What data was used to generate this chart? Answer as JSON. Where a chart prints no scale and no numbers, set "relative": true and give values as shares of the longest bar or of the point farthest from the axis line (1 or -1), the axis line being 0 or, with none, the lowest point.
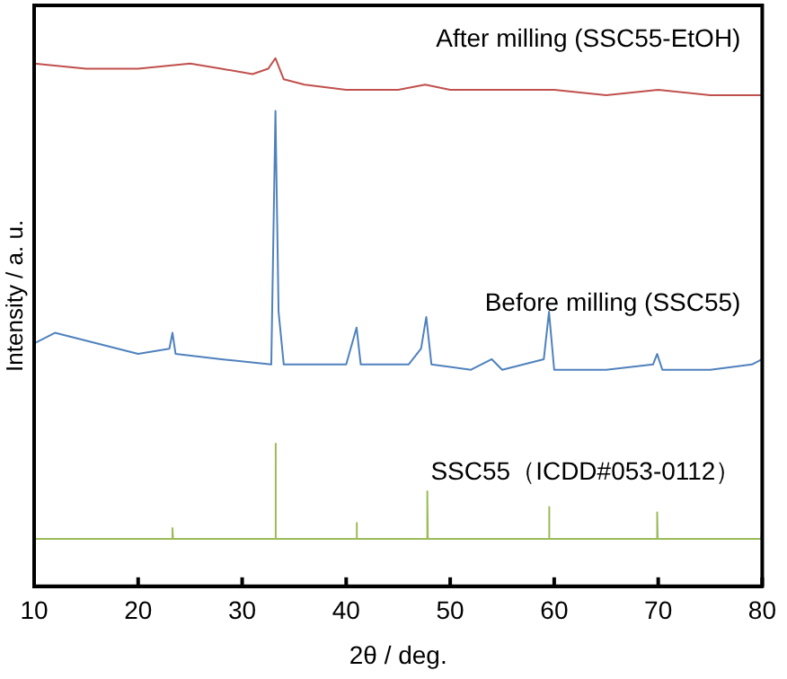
{
  "chart_data": {
    "type": "line",
    "relative": true,
    "xlabel": "2θ / deg.",
    "ylabel": "Intensity / a. u.",
    "xlim": [
      10,
      80
    ],
    "xticks": [
      10,
      20,
      30,
      40,
      50,
      60,
      70,
      80
    ],
    "grid": false,
    "legend": false,
    "marker": "none",
    "line_style": "solid",
    "series": [
      {
        "name": "After milling (SSC55-EtOH)",
        "color": "#c0504d",
        "x": [
          10,
          15,
          20,
          25,
          28,
          31,
          32.5,
          33.2,
          34,
          36,
          40,
          45,
          47.6,
          50,
          55,
          60,
          65,
          70,
          75,
          80
        ],
        "values": [
          0.99,
          0.98,
          0.98,
          0.99,
          0.98,
          0.97,
          0.98,
          1,
          0.96,
          0.95,
          0.94,
          0.94,
          0.95,
          0.94,
          0.94,
          0.94,
          0.93,
          0.94,
          0.93,
          0.93
        ]
      },
      {
        "name": "Before milling (SSC55)",
        "color": "#4f81bd",
        "x": [
          10,
          12,
          16,
          20,
          23,
          23.3,
          23.6,
          28,
          32.8,
          33.2,
          33.5,
          34,
          40,
          41,
          41.4,
          46,
          47.2,
          47.7,
          48.2,
          52,
          54,
          55,
          59,
          59.5,
          60,
          65,
          69.5,
          69.9,
          70.4,
          75,
          79,
          80
        ],
        "values": [
          0.46,
          0.48,
          0.46,
          0.44,
          0.45,
          0.48,
          0.44,
          0.43,
          0.42,
          0.9,
          0.52,
          0.42,
          0.42,
          0.49,
          0.42,
          0.42,
          0.45,
          0.51,
          0.42,
          0.41,
          0.43,
          0.41,
          0.43,
          0.52,
          0.41,
          0.41,
          0.42,
          0.44,
          0.41,
          0.41,
          0.42,
          0.43
        ]
      },
      {
        "name": "SSC55（ICDD#053-0112）",
        "color": "#9bbb59",
        "x": [
          10,
          23.25,
          23.3,
          23.35,
          33.15,
          33.2,
          33.25,
          40.95,
          41,
          41.05,
          47.75,
          47.8,
          47.85,
          59.45,
          59.5,
          59.55,
          69.85,
          69.9,
          69.95,
          79.9,
          80
        ],
        "values": [
          0.09,
          0.09,
          0.11,
          0.09,
          0.09,
          0.27,
          0.09,
          0.09,
          0.12,
          0.09,
          0.09,
          0.18,
          0.09,
          0.09,
          0.15,
          0.09,
          0.09,
          0.14,
          0.09,
          0.09,
          0.11
        ]
      }
    ]
  }
}
